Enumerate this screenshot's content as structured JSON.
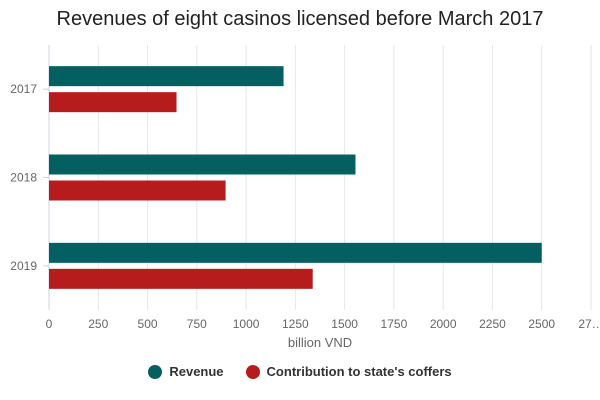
{
  "chart_data": {
    "type": "bar",
    "orientation": "horizontal",
    "title": "Revenues of eight casinos licensed before March 2017",
    "xlabel": "billion VND",
    "ylabel": "",
    "categories": [
      "2017",
      "2018",
      "2019"
    ],
    "series": [
      {
        "name": "Revenue",
        "color": "#035f60",
        "values": [
          1190,
          1555,
          2500
        ]
      },
      {
        "name": "Contribution to state's coffers",
        "color": "#b71c1c",
        "values": [
          647,
          896,
          1338
        ]
      }
    ],
    "xlim": [
      0,
      2750
    ],
    "xticks": [
      "0",
      "250",
      "500",
      "750",
      "1000",
      "1250",
      "1500",
      "1750",
      "2000",
      "2250",
      "2500",
      "27…"
    ],
    "grid": true,
    "legend_position": "bottom"
  }
}
